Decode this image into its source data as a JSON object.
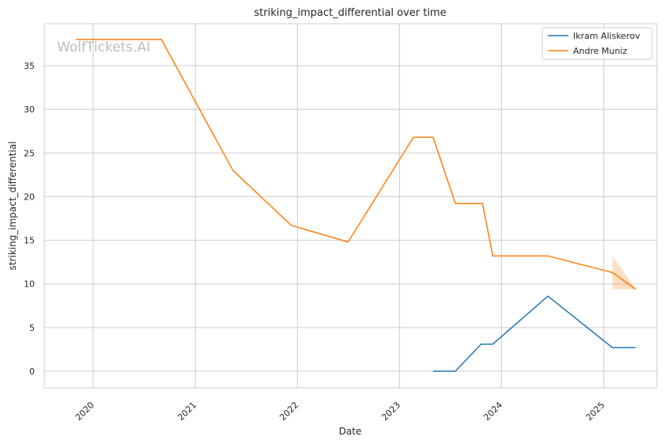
{
  "chart_data": {
    "type": "line",
    "title": "striking_impact_differential over time",
    "xlabel": "Date",
    "ylabel": "striking_impact_differential",
    "watermark": "WolfTickets.AI",
    "xlim": [
      "2019-07-10",
      "2025-07-10"
    ],
    "ylim": [
      -1.9,
      39.8
    ],
    "x_ticks": [
      "2020",
      "2021",
      "2022",
      "2023",
      "2024",
      "2025"
    ],
    "y_ticks": [
      0,
      5,
      10,
      15,
      20,
      25,
      30,
      35
    ],
    "grid": true,
    "legend_position": "top-right",
    "series": [
      {
        "name": "Ikram Aliskerov",
        "color": "#1f77b4",
        "points": [
          {
            "date": "2023-05-01",
            "y": 0
          },
          {
            "date": "2023-07-20",
            "y": 0
          },
          {
            "date": "2023-10-20",
            "y": 3.1
          },
          {
            "date": "2023-12-01",
            "y": 3.1
          },
          {
            "date": "2024-06-15",
            "y": 8.6
          },
          {
            "date": "2025-02-01",
            "y": 2.7
          },
          {
            "date": "2025-04-25",
            "y": 2.7
          }
        ]
      },
      {
        "name": "Andre Muniz",
        "color": "#ff7f0e",
        "points": [
          {
            "date": "2019-11-01",
            "y": 38
          },
          {
            "date": "2020-09-01",
            "y": 38
          },
          {
            "date": "2021-05-15",
            "y": 23
          },
          {
            "date": "2021-12-10",
            "y": 16.7
          },
          {
            "date": "2022-07-01",
            "y": 14.8
          },
          {
            "date": "2023-02-20",
            "y": 26.8
          },
          {
            "date": "2023-05-01",
            "y": 26.8
          },
          {
            "date": "2023-07-20",
            "y": 19.2
          },
          {
            "date": "2023-10-25",
            "y": 19.2
          },
          {
            "date": "2023-12-01",
            "y": 13.2
          },
          {
            "date": "2024-06-15",
            "y": 13.2
          },
          {
            "date": "2025-02-01",
            "y": 11.3
          },
          {
            "date": "2025-04-25",
            "y": 9.4
          }
        ],
        "band": [
          {
            "date": "2025-02-01",
            "lower": 9.4,
            "upper": 13.2
          },
          {
            "date": "2025-04-25",
            "lower": 9.4,
            "upper": 9.4
          }
        ]
      }
    ]
  }
}
